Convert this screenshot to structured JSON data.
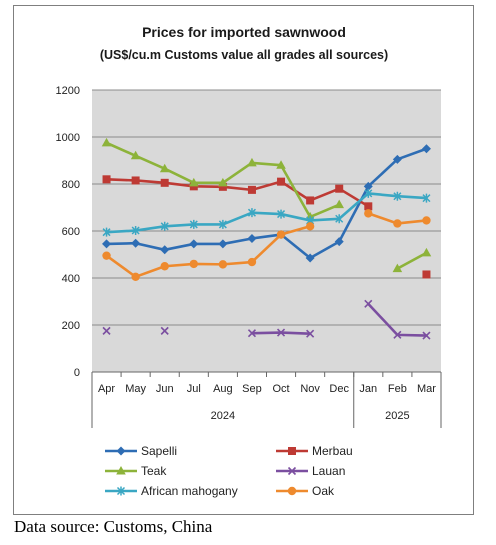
{
  "chart_data": {
    "type": "line",
    "title": "Prices for imported sawnwood",
    "subtitle": "(US$/cu.m Customs value all grades all sources)",
    "categories": [
      "Apr",
      "May",
      "Jun",
      "Jul",
      "Aug",
      "Sep",
      "Oct",
      "Nov",
      "Dec",
      "Jan",
      "Feb",
      "Mar"
    ],
    "groups": [
      {
        "label": "2024",
        "from": 0,
        "to": 8
      },
      {
        "label": "2025",
        "from": 9,
        "to": 11
      }
    ],
    "ylim": [
      0,
      1200
    ],
    "yticks": [
      0,
      200,
      400,
      600,
      800,
      1000,
      1200
    ],
    "grid": true,
    "legend_position": "bottom",
    "series": [
      {
        "name": "Sapelli",
        "color": "#2e6db4",
        "marker": "diamond",
        "values": [
          545,
          548,
          520,
          545,
          545,
          568,
          585,
          485,
          555,
          790,
          905,
          950
        ]
      },
      {
        "name": "Merbau",
        "color": "#be3a34",
        "marker": "square",
        "values": [
          820,
          815,
          805,
          790,
          788,
          775,
          810,
          730,
          780,
          705,
          null,
          415
        ]
      },
      {
        "name": "Teak",
        "color": "#8db33a",
        "marker": "triangle",
        "values": [
          975,
          920,
          865,
          805,
          805,
          890,
          880,
          660,
          712,
          null,
          440,
          507
        ]
      },
      {
        "name": "Lauan",
        "color": "#7b4fa0",
        "marker": "x",
        "values": [
          175,
          null,
          175,
          null,
          null,
          165,
          168,
          163,
          null,
          290,
          158,
          155
        ]
      },
      {
        "name": "African mahogany",
        "color": "#3aa7c3",
        "marker": "asterisk",
        "values": [
          595,
          602,
          620,
          628,
          628,
          678,
          672,
          645,
          652,
          760,
          748,
          740
        ]
      },
      {
        "name": "Oak",
        "color": "#ee8a2e",
        "marker": "circle",
        "values": [
          495,
          405,
          450,
          460,
          458,
          468,
          585,
          620,
          null,
          675,
          632,
          645
        ]
      }
    ]
  },
  "source_note": "Data source: Customs, China"
}
